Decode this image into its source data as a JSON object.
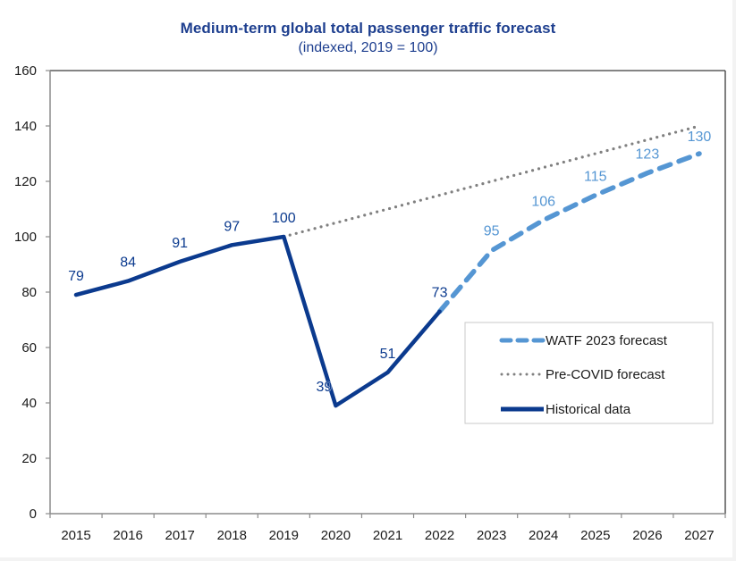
{
  "chart_data": {
    "type": "line",
    "title": "Medium-term global total passenger traffic forecast",
    "subtitle": "(indexed, 2019 = 100)",
    "xlabel": "",
    "ylabel": "",
    "categories": [
      "2015",
      "2016",
      "2017",
      "2018",
      "2019",
      "2020",
      "2021",
      "2022",
      "2023",
      "2024",
      "2025",
      "2026",
      "2027"
    ],
    "ylim": [
      0,
      160
    ],
    "yticks": [
      0,
      20,
      40,
      60,
      80,
      100,
      120,
      140,
      160
    ],
    "grid": false,
    "legend_position": "bottom-right",
    "series": [
      {
        "name": "WATF 2023 forecast",
        "style": "dashed",
        "color": "#5596d3",
        "x": [
          "2022",
          "2023",
          "2024",
          "2025",
          "2026",
          "2027"
        ],
        "values": [
          73,
          95,
          106,
          115,
          123,
          130
        ],
        "labels": [
          "",
          "95",
          "106",
          "115",
          "123",
          "130"
        ]
      },
      {
        "name": "Pre-COVID forecast",
        "style": "dotted",
        "color": "#808080",
        "x": [
          "2019",
          "2020",
          "2021",
          "2022",
          "2023",
          "2024",
          "2025",
          "2026",
          "2027"
        ],
        "values": [
          100,
          105,
          110,
          115,
          120,
          125,
          130,
          135,
          140
        ],
        "labels": [
          "",
          "",
          "",
          "",
          "",
          "",
          "",
          "",
          ""
        ]
      },
      {
        "name": "Historical data",
        "style": "solid",
        "color": "#0b3a8e",
        "x": [
          "2015",
          "2016",
          "2017",
          "2018",
          "2019",
          "2020",
          "2021",
          "2022"
        ],
        "values": [
          79,
          84,
          91,
          97,
          100,
          39,
          51,
          73
        ],
        "labels": [
          "79",
          "84",
          "91",
          "97",
          "100",
          "39",
          "51",
          "73"
        ]
      }
    ]
  }
}
